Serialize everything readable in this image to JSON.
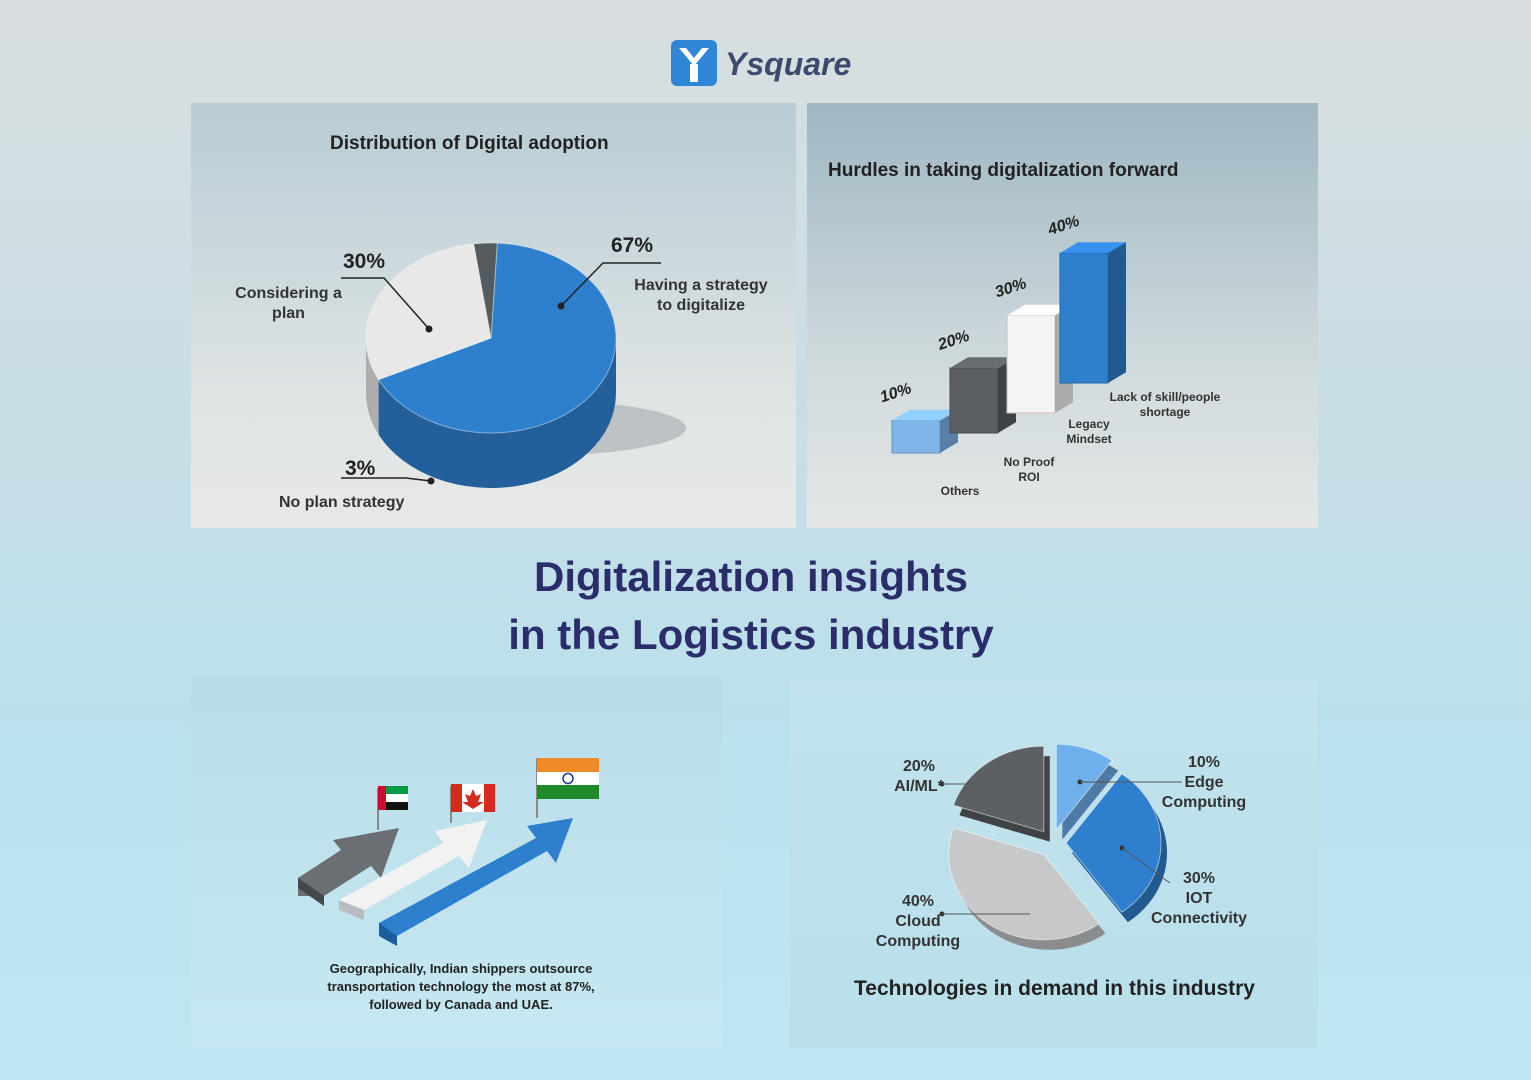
{
  "brand": {
    "name": "Ysquare",
    "color": "#2f86d6"
  },
  "headline": {
    "line1": "Digitalization insights",
    "line2": "in the Logistics industry"
  },
  "chart_data": [
    {
      "type": "pie",
      "title": "Distribution of Digital adoption",
      "slices": [
        {
          "value": 67,
          "pct": "67%",
          "label_line1": "Having a strategy",
          "label_line2": "to digitalize",
          "color": "#2f7fcf"
        },
        {
          "value": 30,
          "pct": "30%",
          "label_line1": "Considering a",
          "label_line2": "plan",
          "color": "#e8e8e8"
        },
        {
          "value": 3,
          "pct": "3%",
          "label_line1": "No plan strategy",
          "label_line2": "",
          "color": "#555a5e"
        }
      ]
    },
    {
      "type": "bar",
      "title": "Hurdles in taking digitalization forward",
      "categories": [
        "Others",
        "No Proof ROI",
        "Legacy Mindset",
        "Lack of skill/people shortage"
      ],
      "label_lines": [
        [
          "Others"
        ],
        [
          "No Proof",
          "ROI"
        ],
        [
          "Legacy",
          "Mindset"
        ],
        [
          "Lack of skill/people",
          "shortage"
        ]
      ],
      "values": [
        10,
        20,
        30,
        40
      ],
      "pct_labels": [
        "10%",
        "20%",
        "30%",
        "40%"
      ],
      "ylim": [
        0,
        40
      ]
    },
    {
      "type": "pie",
      "title": "Technologies in demand in this industry",
      "slices": [
        {
          "value": 10,
          "pct": "10%",
          "label_line1": "Edge",
          "label_line2": "Computing",
          "color": "#6fb0ec"
        },
        {
          "value": 30,
          "pct": "30%",
          "label_line1": "IOT",
          "label_line2": "Connectivity",
          "color": "#2f7fcf"
        },
        {
          "value": 40,
          "pct": "40%",
          "label_line1": "Cloud",
          "label_line2": "Computing",
          "color": "#c6c8ca"
        },
        {
          "value": 20,
          "pct": "20%",
          "label_line1": "AI/ML*",
          "label_line2": "",
          "color": "#5c6064"
        }
      ]
    }
  ],
  "geo": {
    "caption_line1": "Geographically, Indian shippers outsource",
    "caption_line2": "transportation technology the most at 87%,",
    "caption_line3": "followed by Canada and UAE.",
    "countries": [
      "UAE",
      "Canada",
      "India"
    ]
  }
}
